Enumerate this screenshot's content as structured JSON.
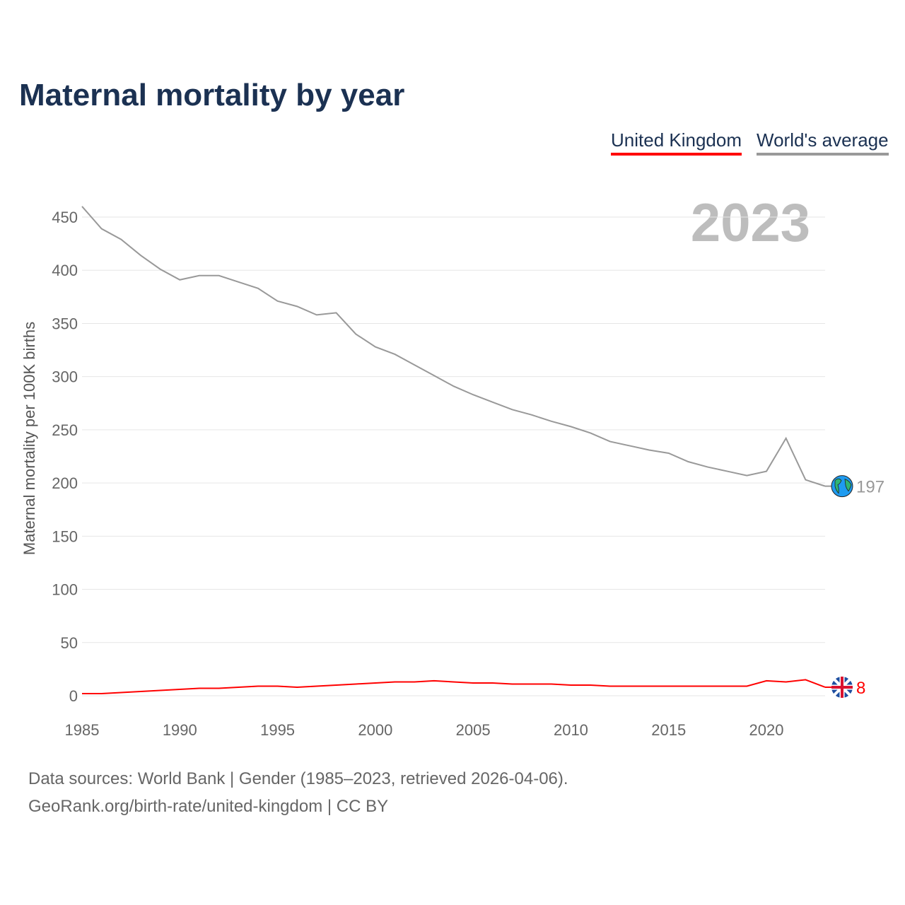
{
  "chart_data": {
    "type": "line",
    "title": "Maternal mortality by year",
    "ylabel": "Maternal mortality per 100K births",
    "xlabel": "",
    "xlim": [
      1985,
      2023
    ],
    "ylim": [
      0,
      470
    ],
    "yticks": [
      0,
      50,
      100,
      150,
      200,
      250,
      300,
      350,
      400,
      450
    ],
    "xticks": [
      1985,
      1990,
      1995,
      2000,
      2005,
      2010,
      2015,
      2020
    ],
    "grid": true,
    "legend_placement": "top-right",
    "highlight_year": "2023",
    "x": [
      1985,
      1986,
      1987,
      1988,
      1989,
      1990,
      1991,
      1992,
      1993,
      1994,
      1995,
      1996,
      1997,
      1998,
      1999,
      2000,
      2001,
      2002,
      2003,
      2004,
      2005,
      2006,
      2007,
      2008,
      2009,
      2010,
      2011,
      2012,
      2013,
      2014,
      2015,
      2016,
      2017,
      2018,
      2019,
      2020,
      2021,
      2022,
      2023
    ],
    "series": [
      {
        "name": "United Kingdom",
        "color": "#ff0000",
        "icon": "uk-flag-icon",
        "end_label": "8",
        "values": [
          2,
          2,
          3,
          4,
          5,
          6,
          7,
          7,
          8,
          9,
          9,
          8,
          9,
          10,
          11,
          12,
          13,
          13,
          14,
          13,
          12,
          12,
          11,
          11,
          11,
          10,
          10,
          9,
          9,
          9,
          9,
          9,
          9,
          9,
          9,
          14,
          13,
          15,
          8
        ]
      },
      {
        "name": "World's average",
        "color": "#999999",
        "icon": "globe-icon",
        "end_label": "197",
        "values": [
          460,
          439,
          429,
          414,
          401,
          391,
          395,
          395,
          389,
          383,
          371,
          366,
          358,
          360,
          340,
          328,
          321,
          311,
          301,
          291,
          283,
          276,
          269,
          264,
          258,
          253,
          247,
          239,
          235,
          231,
          228,
          220,
          215,
          211,
          207,
          211,
          242,
          203,
          197
        ]
      }
    ]
  },
  "sources": {
    "line1": "Data sources: World Bank | Gender (1985–2023, retrieved 2026-04-06).",
    "line2": "GeoRank.org/birth-rate/united-kingdom | CC BY"
  }
}
